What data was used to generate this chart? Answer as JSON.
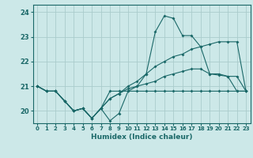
{
  "title": "",
  "xlabel": "Humidex (Indice chaleur)",
  "ylabel": "",
  "bg_color": "#cce8e8",
  "grid_color": "#aacccc",
  "line_color": "#1a6868",
  "xlim": [
    -0.5,
    23.5
  ],
  "ylim": [
    19.5,
    24.3
  ],
  "xticks": [
    0,
    1,
    2,
    3,
    4,
    5,
    6,
    7,
    8,
    9,
    10,
    11,
    12,
    13,
    14,
    15,
    16,
    17,
    18,
    19,
    20,
    21,
    22,
    23
  ],
  "yticks": [
    20,
    21,
    22,
    23,
    24
  ],
  "series": [
    {
      "x": [
        0,
        1,
        2,
        3,
        4,
        5,
        6,
        7,
        8,
        9,
        10,
        11,
        12,
        13,
        14,
        15,
        16,
        17,
        18,
        19,
        20,
        21,
        22,
        23
      ],
      "y": [
        21.0,
        20.8,
        20.8,
        20.4,
        20.0,
        20.1,
        19.7,
        20.1,
        19.6,
        19.9,
        20.8,
        21.0,
        21.5,
        23.2,
        23.85,
        23.75,
        23.05,
        23.05,
        22.6,
        21.5,
        21.45,
        21.4,
        20.8,
        20.8
      ]
    },
    {
      "x": [
        0,
        1,
        2,
        3,
        4,
        5,
        6,
        7,
        8,
        9,
        10,
        11,
        12,
        13,
        14,
        15,
        16,
        17,
        18,
        19,
        20,
        21,
        22,
        23
      ],
      "y": [
        21.0,
        20.8,
        20.8,
        20.4,
        20.0,
        20.1,
        19.7,
        20.1,
        20.5,
        20.7,
        21.0,
        21.2,
        21.5,
        21.8,
        22.0,
        22.2,
        22.3,
        22.5,
        22.6,
        22.7,
        22.8,
        22.8,
        22.8,
        20.8
      ]
    },
    {
      "x": [
        0,
        1,
        2,
        3,
        4,
        5,
        6,
        7,
        8,
        9,
        10,
        11,
        12,
        13,
        14,
        15,
        16,
        17,
        18,
        19,
        20,
        21,
        22,
        23
      ],
      "y": [
        21.0,
        20.8,
        20.8,
        20.4,
        20.0,
        20.1,
        19.7,
        20.1,
        20.5,
        20.7,
        20.9,
        21.0,
        21.1,
        21.2,
        21.4,
        21.5,
        21.6,
        21.7,
        21.7,
        21.5,
        21.5,
        21.4,
        21.4,
        20.8
      ]
    },
    {
      "x": [
        0,
        1,
        2,
        3,
        4,
        5,
        6,
        7,
        8,
        9,
        10,
        11,
        12,
        13,
        14,
        15,
        16,
        17,
        18,
        19,
        20,
        21,
        22,
        23
      ],
      "y": [
        21.0,
        20.8,
        20.8,
        20.4,
        20.0,
        20.1,
        19.7,
        20.1,
        20.8,
        20.8,
        20.8,
        20.8,
        20.8,
        20.8,
        20.8,
        20.8,
        20.8,
        20.8,
        20.8,
        20.8,
        20.8,
        20.8,
        20.8,
        20.8
      ]
    }
  ]
}
